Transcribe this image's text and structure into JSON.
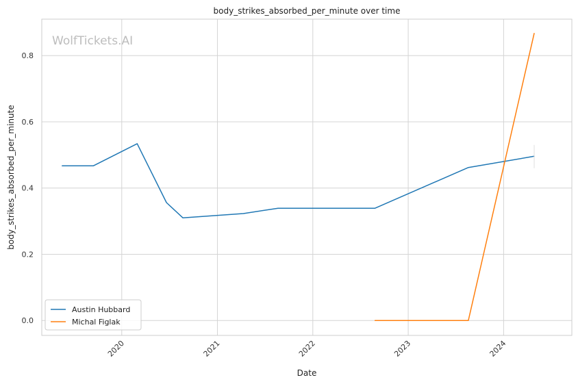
{
  "chart_data": {
    "type": "line",
    "title": "body_strikes_absorbed_per_minute over time",
    "xlabel": "Date",
    "ylabel": "body_strikes_absorbed_per_minute",
    "watermark": "WolfTickets.AI",
    "x_ticks": [
      "2020",
      "2021",
      "2022",
      "2023",
      "2024"
    ],
    "y_ticks": [
      "0.0",
      "0.2",
      "0.4",
      "0.6",
      "0.8"
    ],
    "xlim": [
      "2019-03-01",
      "2024-09-18"
    ],
    "ylim": [
      -0.045,
      0.91
    ],
    "grid": true,
    "legend_position": "lower-left",
    "series": [
      {
        "name": "Austin Hubbard",
        "color": "#1f77b4",
        "x": [
          "2019-05-18",
          "2019-09-14",
          "2020-02-29",
          "2020-06-20",
          "2020-08-22",
          "2021-04-10",
          "2021-08-21",
          "2022-08-27",
          "2023-08-19",
          "2024-04-27"
        ],
        "y": [
          0.467,
          0.467,
          0.534,
          0.356,
          0.31,
          0.323,
          0.339,
          0.339,
          0.462,
          0.496
        ]
      },
      {
        "name": "Michal Figlak",
        "color": "#ff7f0e",
        "x": [
          "2022-08-27",
          "2023-08-19",
          "2024-04-27"
        ],
        "y": [
          0.0,
          0.0,
          0.867
        ]
      }
    ]
  }
}
